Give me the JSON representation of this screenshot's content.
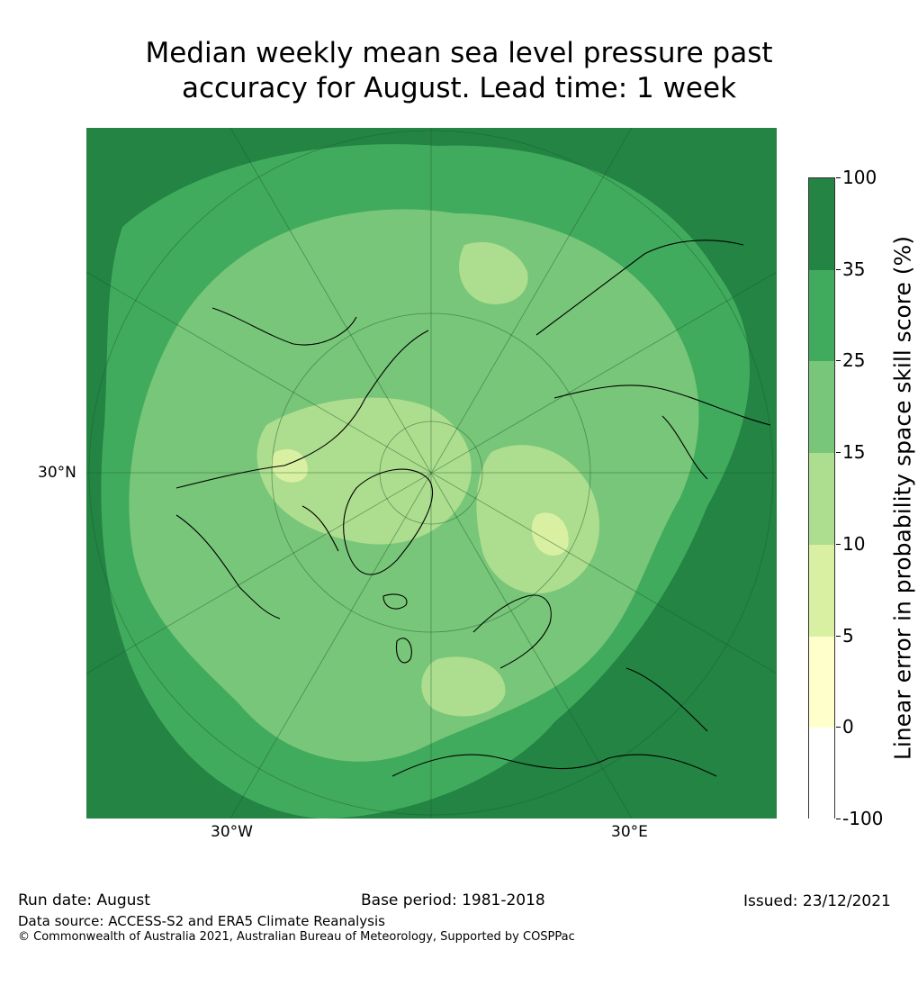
{
  "title": {
    "line1": "Median weekly mean sea level pressure past",
    "line2": "accuracy for August. Lead time: 1 week"
  },
  "map": {
    "projection": "north polar stereographic",
    "labels": {
      "lat_left": "30°N",
      "lon_bottom_left": "30°W",
      "lon_bottom_right": "30°E"
    }
  },
  "colorbar": {
    "title": "Linear error in probability space skill score (%)",
    "ticks": [
      "100",
      "35",
      "25",
      "15",
      "10",
      "5",
      "0",
      "-100"
    ],
    "bins": [
      {
        "range": "35 to 100",
        "color": "#238443"
      },
      {
        "range": "25 to 35",
        "color": "#41ab5d"
      },
      {
        "range": "15 to 25",
        "color": "#78c679"
      },
      {
        "range": "10 to 15",
        "color": "#addd8e"
      },
      {
        "range": "5 to 10",
        "color": "#d9f0a3"
      },
      {
        "range": "0 to 5",
        "color": "#ffffcc"
      },
      {
        "range": "-100 to 0",
        "color": "#ffffff"
      }
    ]
  },
  "footer": {
    "run_date": "Run date: August",
    "base_period": "Base period: 1981-2018",
    "issued": "Issued: 23/12/2021",
    "data_source": "Data source: ACCESS-S2 and ERA5 Climate Reanalysis",
    "copyright": "© Commonwealth of Australia 2021, Australian Bureau of Meteorology, Supported by COSPPac"
  }
}
